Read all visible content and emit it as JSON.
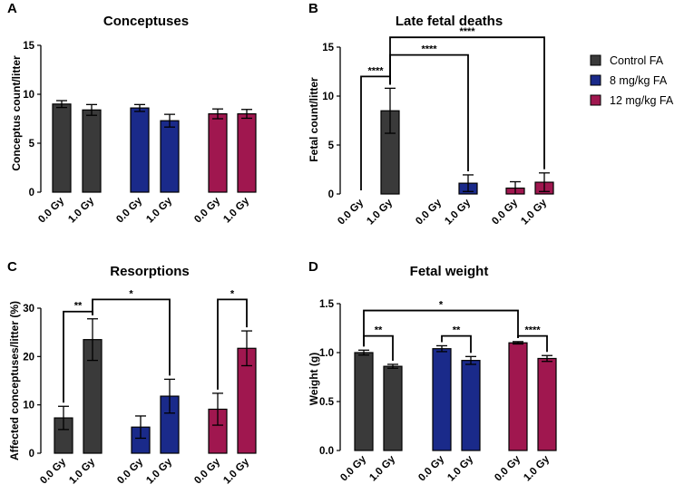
{
  "colors": {
    "control": "#3a3a3a",
    "mg8": "#1a2a8a",
    "mg12": "#a0174f",
    "axis": "#000000"
  },
  "legend": [
    {
      "label": "Control FA",
      "color": "#3a3a3a"
    },
    {
      "label": "8 mg/kg FA",
      "color": "#1a2a8a"
    },
    {
      "label": "12 mg/kg FA",
      "color": "#a0174f"
    }
  ],
  "chart_data": [
    {
      "letter": "A",
      "type": "bar",
      "title": "Conceptuses",
      "ylabel": "Conceptus count/litter",
      "xlabel": "",
      "ylim": [
        0,
        15
      ],
      "yticks": [
        "0",
        "5",
        "10",
        "15"
      ],
      "ytick_values": [
        0,
        5,
        10,
        15
      ],
      "categories": [
        "0.0 Gy",
        "1.0 Gy",
        "0.0 Gy",
        "1.0 Gy",
        "0.0 Gy",
        "1.0 Gy"
      ],
      "groups": [
        "Control FA",
        "Control FA",
        "8 mg/kg FA",
        "8 mg/kg FA",
        "12 mg/kg FA",
        "12 mg/kg FA"
      ],
      "values": [
        9.0,
        8.4,
        8.6,
        7.3,
        8.0,
        8.0
      ],
      "errors": [
        0.35,
        0.55,
        0.35,
        0.65,
        0.5,
        0.45
      ],
      "significance": []
    },
    {
      "letter": "B",
      "type": "bar",
      "title": "Late fetal deaths",
      "ylabel": "Fetal count/litter",
      "xlabel": "",
      "ylim": [
        0,
        15
      ],
      "yticks": [
        "0",
        "5",
        "10",
        "15"
      ],
      "ytick_values": [
        0,
        5,
        10,
        15
      ],
      "categories": [
        "0.0 Gy",
        "1.0 Gy",
        "0.0 Gy",
        "1.0 Gy",
        "0.0 Gy",
        "1.0 Gy"
      ],
      "groups": [
        "Control FA",
        "Control FA",
        "8 mg/kg FA",
        "8 mg/kg FA",
        "12 mg/kg FA",
        "12 mg/kg FA"
      ],
      "values": [
        0,
        8.5,
        0,
        1.1,
        0.6,
        1.2
      ],
      "errors": [
        0,
        2.3,
        0,
        0.85,
        0.65,
        0.95
      ],
      "significance": [
        {
          "from": 0,
          "to": 1,
          "level": 12.0,
          "label": "****"
        },
        {
          "from": 1,
          "to": 3,
          "level": 14.2,
          "label": "****"
        },
        {
          "from": 1,
          "to": 5,
          "level": 16.0,
          "label": "****"
        }
      ]
    },
    {
      "letter": "C",
      "type": "bar",
      "title": "Resorptions",
      "ylabel": "Affected conceptuses/litter (%)",
      "xlabel": "",
      "ylim": [
        0,
        30
      ],
      "yticks": [
        "0",
        "10",
        "20",
        "30"
      ],
      "ytick_values": [
        0,
        10,
        20,
        30
      ],
      "categories": [
        "0.0 Gy",
        "1.0 Gy",
        "0.0 Gy",
        "1.0 Gy",
        "0.0 Gy",
        "1.0 Gy"
      ],
      "groups": [
        "Control FA",
        "Control FA",
        "8 mg/kg FA",
        "8 mg/kg FA",
        "12 mg/kg FA",
        "12 mg/kg FA"
      ],
      "values": [
        7.3,
        23.5,
        5.4,
        11.8,
        9.1,
        21.7
      ],
      "errors": [
        2.4,
        4.3,
        2.3,
        3.5,
        3.3,
        3.6
      ],
      "significance": [
        {
          "from": 0,
          "to": 1,
          "level": 29.3,
          "label": "**"
        },
        {
          "from": 1,
          "to": 3,
          "level": 31.8,
          "label": "*"
        },
        {
          "from": 4,
          "to": 5,
          "level": 31.8,
          "label": "*"
        }
      ]
    },
    {
      "letter": "D",
      "type": "bar",
      "title": "Fetal weight",
      "ylabel": "Weight (g)",
      "xlabel": "",
      "ylim": [
        0,
        1.5
      ],
      "yticks": [
        "0.0",
        "0.5",
        "1.0",
        "1.5"
      ],
      "ytick_values": [
        0,
        0.5,
        1.0,
        1.5
      ],
      "categories": [
        "0.0 Gy",
        "1.0 Gy",
        "0.0 Gy",
        "1.0 Gy",
        "0.0 Gy",
        "1.0 Gy"
      ],
      "groups": [
        "Control FA",
        "Control FA",
        "8 mg/kg FA",
        "8 mg/kg FA",
        "12 mg/kg FA",
        "12 mg/kg FA"
      ],
      "values": [
        1.0,
        0.86,
        1.04,
        0.92,
        1.1,
        0.94
      ],
      "errors": [
        0.025,
        0.02,
        0.03,
        0.04,
        0.012,
        0.03
      ],
      "significance": [
        {
          "from": 0,
          "to": 1,
          "level": 1.17,
          "label": "**"
        },
        {
          "from": 2,
          "to": 3,
          "level": 1.17,
          "label": "**"
        },
        {
          "from": 4,
          "to": 5,
          "level": 1.17,
          "label": "****"
        },
        {
          "from": 0,
          "to": 4,
          "level": 1.43,
          "label": "*"
        }
      ]
    }
  ]
}
